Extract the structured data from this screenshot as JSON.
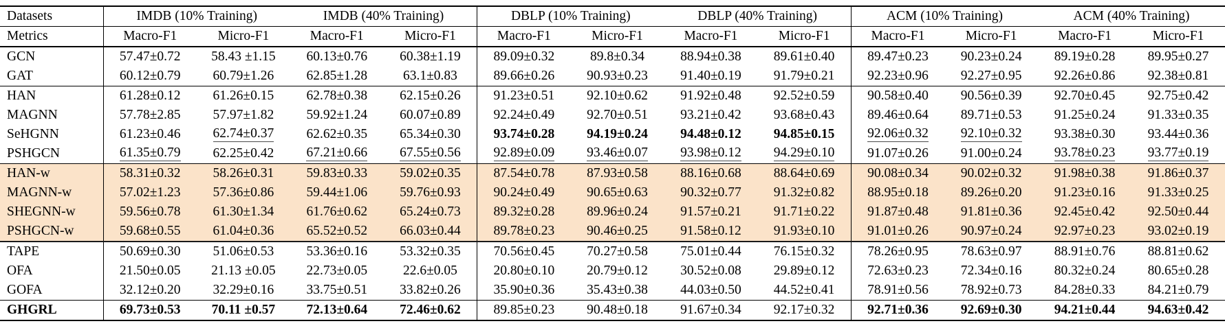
{
  "table": {
    "corner": {
      "datasets": "Datasets",
      "metrics": "Metrics"
    },
    "groups": [
      {
        "label": "IMDB (10% Training)"
      },
      {
        "label": "IMDB (40% Training)"
      },
      {
        "label": "DBLP (10% Training)"
      },
      {
        "label": "DBLP (40% Training)"
      },
      {
        "label": "ACM (10% Training)"
      },
      {
        "label": "ACM (40% Training)"
      }
    ],
    "metric_labels": [
      "Macro-F1",
      "Micro-F1"
    ],
    "highlight_color": "#fbe3c9",
    "rows": [
      {
        "label": "GCN",
        "highlight": false,
        "bold_label": false,
        "rule_after": "",
        "cells": [
          "57.47±0.72",
          "58.43 ±1.15",
          "60.13±0.76",
          "60.38±1.19",
          "89.09±0.32",
          "89.8±0.34",
          "88.94±0.38",
          "89.61±0.40",
          "89.47±0.23",
          "90.23±0.24",
          "89.19±0.28",
          "89.95±0.27"
        ],
        "bold": [],
        "underline": []
      },
      {
        "label": "GAT",
        "highlight": false,
        "bold_label": false,
        "rule_after": "thin",
        "cells": [
          "60.12±0.79",
          "60.79±1.26",
          "62.85±1.28",
          "63.1±0.83",
          "89.66±0.26",
          "90.93±0.23",
          "91.40±0.19",
          "91.79±0.21",
          "92.23±0.96",
          "92.27±0.95",
          "92.26±0.86",
          "92.38±0.81"
        ],
        "bold": [],
        "underline": []
      },
      {
        "label": "HAN",
        "highlight": false,
        "bold_label": false,
        "rule_after": "",
        "cells": [
          "61.28±0.12",
          "61.26±0.15",
          "62.78±0.38",
          "62.15±0.26",
          "91.23±0.51",
          "92.10±0.62",
          "91.92±0.48",
          "92.52±0.59",
          "90.58±0.40",
          "90.56±0.39",
          "92.70±0.45",
          "92.75±0.42"
        ],
        "bold": [],
        "underline": []
      },
      {
        "label": "MAGNN",
        "highlight": false,
        "bold_label": false,
        "rule_after": "",
        "cells": [
          "57.78±2.85",
          "57.97±1.82",
          "59.92±1.24",
          "60.07±0.89",
          "92.24±0.49",
          "92.70±0.51",
          "93.21±0.42",
          "93.68±0.43",
          "89.46±0.64",
          "89.71±0.53",
          "91.25±0.24",
          "91.33±0.35"
        ],
        "bold": [],
        "underline": []
      },
      {
        "label": "SeHGNN",
        "highlight": false,
        "bold_label": false,
        "rule_after": "",
        "cells": [
          "61.23±0.46",
          "62.74±0.37",
          "62.62±0.35",
          "65.34±0.30",
          "93.74±0.28",
          "94.19±0.24",
          "94.48±0.12",
          "94.85±0.15",
          "92.06±0.32",
          "92.10±0.32",
          "93.38±0.30",
          "93.44±0.36"
        ],
        "bold": [
          4,
          5,
          6,
          7
        ],
        "underline": [
          1,
          8,
          9
        ]
      },
      {
        "label": "PSHGCN",
        "highlight": false,
        "bold_label": false,
        "rule_after": "thin",
        "cells": [
          "61.35±0.79",
          "62.25±0.42",
          "67.21±0.66",
          "67.55±0.56",
          "92.89±0.09",
          "93.46±0.07",
          "93.98±0.12",
          "94.29±0.10",
          "91.07±0.26",
          "91.00±0.24",
          "93.78±0.23",
          "93.77±0.19"
        ],
        "bold": [],
        "underline": [
          0,
          2,
          3,
          4,
          5,
          6,
          7,
          10,
          11
        ]
      },
      {
        "label": "HAN-w",
        "highlight": true,
        "bold_label": false,
        "rule_after": "",
        "cells": [
          "58.31±0.32",
          "58.26±0.31",
          "59.83±0.33",
          "59.02±0.35",
          "87.54±0.78",
          "87.93±0.58",
          "88.16±0.68",
          "88.64±0.69",
          "90.08±0.34",
          "90.02±0.32",
          "91.98±0.38",
          "91.86±0.37"
        ],
        "bold": [],
        "underline": []
      },
      {
        "label": "MAGNN-w",
        "highlight": true,
        "bold_label": false,
        "rule_after": "",
        "cells": [
          "57.02±1.23",
          "57.36±0.86",
          "59.44±1.06",
          "59.76±0.93",
          "90.24±0.49",
          "90.65±0.63",
          "90.32±0.77",
          "91.32±0.82",
          "88.95±0.18",
          "89.26±0.20",
          "91.23±0.16",
          "91.33±0.25"
        ],
        "bold": [],
        "underline": []
      },
      {
        "label": "SHEGNN-w",
        "highlight": true,
        "bold_label": false,
        "rule_after": "",
        "cells": [
          "59.56±0.78",
          "61.30±1.34",
          "61.76±0.62",
          "65.24±0.73",
          "89.32±0.28",
          "89.96±0.24",
          "91.57±0.21",
          "91.71±0.22",
          "91.87±0.48",
          "91.81±0.36",
          "92.45±0.42",
          "92.50±0.44"
        ],
        "bold": [],
        "underline": []
      },
      {
        "label": "PSHGCN-w",
        "highlight": true,
        "bold_label": false,
        "rule_after": "thick",
        "cells": [
          "59.68±0.55",
          "61.04±0.36",
          "65.52±0.52",
          "66.03±0.44",
          "89.78±0.23",
          "90.46±0.25",
          "91.58±0.12",
          "91.93±0.10",
          "91.01±0.26",
          "90.97±0.24",
          "92.97±0.23",
          "93.02±0.19"
        ],
        "bold": [],
        "underline": []
      },
      {
        "label": "TAPE",
        "highlight": false,
        "bold_label": false,
        "rule_after": "",
        "cells": [
          "50.69±0.30",
          "51.06±0.53",
          "53.36±0.16",
          "53.32±0.35",
          "70.56±0.45",
          "70.27±0.58",
          "75.01±0.44",
          "76.15±0.32",
          "78.26±0.95",
          "78.63±0.97",
          "88.91±0.76",
          "88.81±0.62"
        ],
        "bold": [],
        "underline": []
      },
      {
        "label": "OFA",
        "highlight": false,
        "bold_label": false,
        "rule_after": "",
        "cells": [
          "21.50±0.05",
          "21.13 ±0.05",
          "22.73±0.05",
          "22.6±0.05",
          "20.80±0.10",
          "20.79±0.12",
          "30.52±0.08",
          "29.89±0.12",
          "72.63±0.23",
          "72.34±0.16",
          "80.32±0.24",
          "80.65±0.28"
        ],
        "bold": [],
        "underline": []
      },
      {
        "label": "GOFA",
        "highlight": false,
        "bold_label": false,
        "rule_after": "pre-last",
        "cells": [
          "32.12±0.20",
          "32.29±0.16",
          "33.75±0.51",
          "33.82±0.26",
          "35.90±0.36",
          "35.43±0.38",
          "44.03±0.50",
          "44.52±0.41",
          "78.91±0.56",
          "78.92±0.73",
          "84.28±0.33",
          "84.21±0.79"
        ],
        "bold": [],
        "underline": []
      },
      {
        "label": "GHGRL",
        "highlight": false,
        "bold_label": true,
        "rule_after": "",
        "cells": [
          "69.73±0.53",
          "70.11 ±0.57",
          "72.13±0.64",
          "72.46±0.62",
          "89.85±0.23",
          "90.48±0.18",
          "91.67±0.34",
          "92.17±0.32",
          "92.71±0.36",
          "92.69±0.30",
          "94.21±0.44",
          "94.63±0.42"
        ],
        "bold": [
          0,
          1,
          2,
          3,
          8,
          9,
          10,
          11
        ],
        "underline": []
      }
    ]
  }
}
